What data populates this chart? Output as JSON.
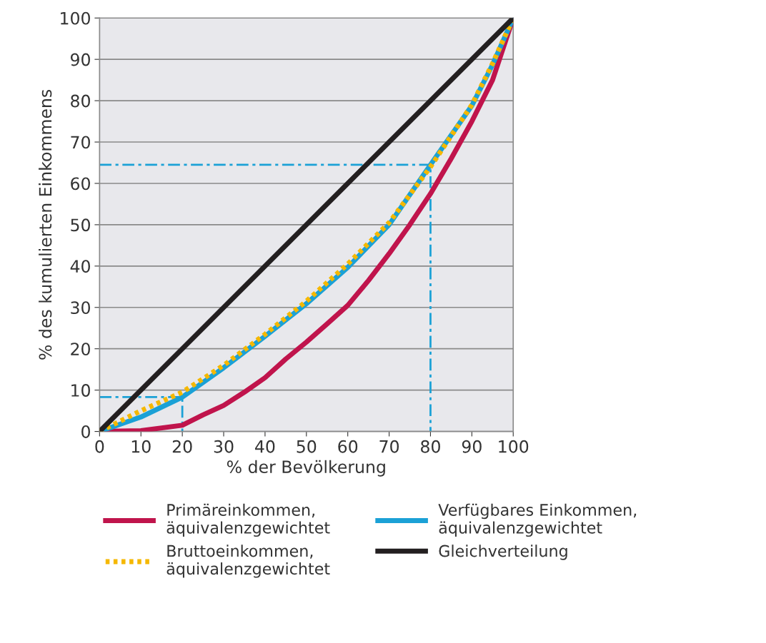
{
  "chart_data": {
    "type": "line",
    "xlabel": "% der Bevölkerung",
    "ylabel": "% des kumulierten Einkommens",
    "xlim": [
      0,
      100
    ],
    "ylim": [
      0,
      100
    ],
    "xticks": [
      0,
      10,
      20,
      30,
      40,
      50,
      60,
      70,
      80,
      90,
      100
    ],
    "yticks": [
      0,
      10,
      20,
      30,
      40,
      50,
      60,
      70,
      80,
      90,
      100
    ],
    "grid": "y",
    "legend": "bottom",
    "series": [
      {
        "name": "Primäreinkommen, äquivalenzgewichtet",
        "color": "#c0144c",
        "line_style": "solid",
        "x": [
          0,
          10,
          20,
          25,
          30,
          35,
          40,
          45,
          50,
          55,
          60,
          65,
          70,
          75,
          80,
          85,
          90,
          95,
          100
        ],
        "values": [
          0,
          0.2,
          1.5,
          4,
          6.3,
          9.5,
          13,
          17.5,
          21.6,
          26,
          30.5,
          36.5,
          43,
          50,
          57.5,
          66,
          75,
          85,
          100
        ]
      },
      {
        "name": "Verfügbares Einkommen, äquivalenzgewichtet",
        "color": "#1ba1d6",
        "line_style": "solid",
        "x": [
          0,
          10,
          20,
          30,
          40,
          50,
          60,
          70,
          80,
          90,
          95,
          100
        ],
        "values": [
          0,
          3.5,
          8.3,
          15.4,
          23,
          30.9,
          39.7,
          50,
          64.5,
          78.8,
          88.7,
          100
        ]
      },
      {
        "name": "Bruttoeinkommen, äquivalenzgewichtet",
        "color": "#f5b800",
        "line_style": "dotted",
        "x": [
          0,
          10,
          20,
          30,
          40,
          50,
          60,
          70,
          80,
          90,
          95,
          100
        ],
        "values": [
          0,
          5,
          9.5,
          16,
          23.5,
          31.5,
          40.5,
          50.5,
          64,
          79,
          89,
          100
        ]
      },
      {
        "name": "Gleichverteilung",
        "color": "#231f20",
        "line_style": "solid",
        "x": [
          0,
          100
        ],
        "values": [
          0,
          100
        ]
      },
      {
        "color": "#1ba1d6",
        "line_style": "dashed",
        "x": [
          0,
          20,
          20
        ],
        "values": [
          8.3,
          8.3,
          0
        ]
      },
      {
        "color": "#1ba1d6",
        "line_style": "dashed",
        "x": [
          0,
          80,
          80
        ],
        "values": [
          64.5,
          64.5,
          0
        ]
      }
    ]
  }
}
